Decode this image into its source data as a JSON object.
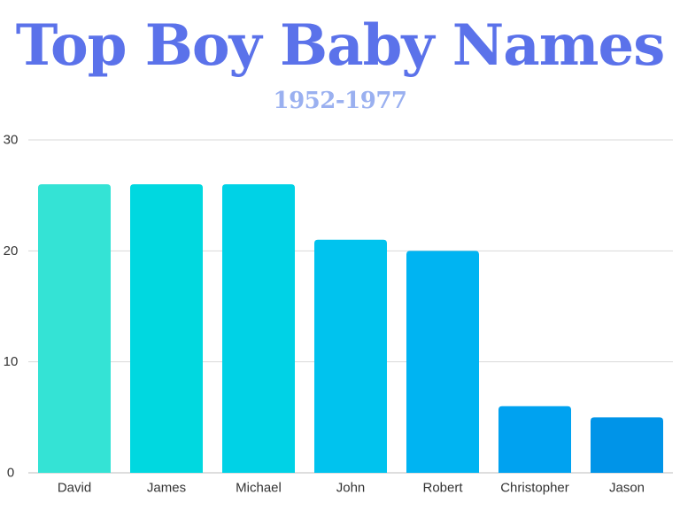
{
  "chart_data": {
    "type": "bar",
    "title": "Top Boy Baby Names",
    "subtitle": "1952-1977",
    "categories": [
      "David",
      "James",
      "Michael",
      "John",
      "Robert",
      "Christopher",
      "Jason"
    ],
    "values": [
      26,
      26,
      26,
      21,
      20,
      6,
      5
    ],
    "ylim": [
      0,
      30
    ],
    "yticks": [
      0,
      10,
      20,
      30
    ],
    "grid": true,
    "colors": [
      "#34e3d5",
      "#00d8e0",
      "#00d2e6",
      "#00c3ee",
      "#00b4f2",
      "#00a2f0",
      "#0094e8"
    ]
  }
}
